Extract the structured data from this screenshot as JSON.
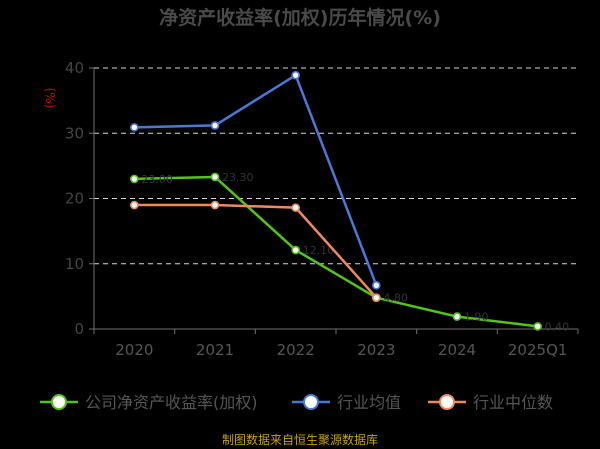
{
  "chart_data": {
    "type": "line",
    "title": "净资产收益率(加权)历年情况(%)",
    "yunit": "(%)",
    "categories": [
      "2020",
      "2021",
      "2022",
      "2023",
      "2024",
      "2025Q1"
    ],
    "ylim": [
      0,
      40
    ],
    "yticks": [
      "0",
      "10",
      "20",
      "30",
      "40"
    ],
    "grid": true,
    "legend_position": "bottom",
    "series": [
      {
        "name": "公司净资产收益率(加权)",
        "color": "#52c41a",
        "values": [
          23.0,
          23.3,
          12.1,
          4.8,
          1.9,
          0.4
        ]
      },
      {
        "name": "行业均值",
        "color": "#4a78d8",
        "values": [
          30.9,
          31.2,
          38.9,
          6.7,
          null,
          null
        ]
      },
      {
        "name": "行业中位数",
        "color": "#f08a5d",
        "values": [
          19.0,
          19.0,
          18.6,
          4.8,
          null,
          null
        ]
      }
    ],
    "source": "制图数据来自恒生聚源数据库"
  }
}
